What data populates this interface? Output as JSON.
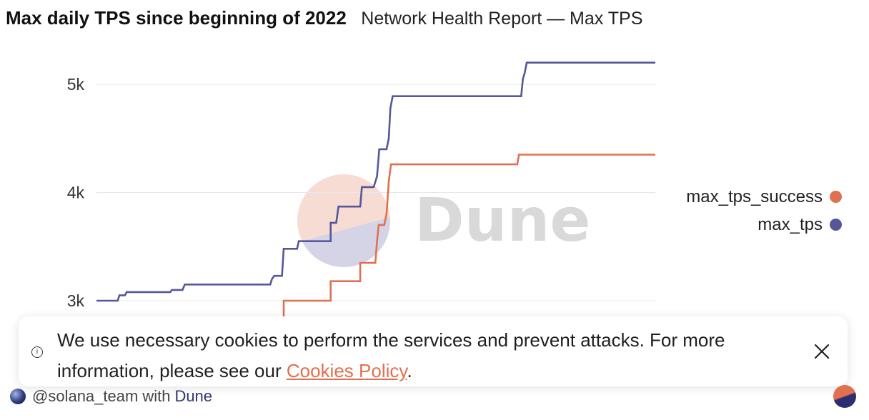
{
  "header": {
    "title": "Max daily TPS since beginning of 2022",
    "subtitle": "Network Health Report — Max TPS"
  },
  "watermark": {
    "text": "Dune"
  },
  "chart_data": {
    "type": "line",
    "title": "Max daily TPS since beginning of 2022",
    "xlabel": "",
    "ylabel": "",
    "x_axis_visible": false,
    "y_ticks": [
      {
        "value": 3000,
        "label": "3k"
      },
      {
        "value": 4000,
        "label": "4k"
      },
      {
        "value": 5000,
        "label": "5k"
      }
    ],
    "ylim": [
      2700,
      5400
    ],
    "xlim": [
      0,
      100
    ],
    "grid": true,
    "legend_position": "right",
    "series": [
      {
        "name": "max_tps_success",
        "color": "#e0704f",
        "points": [
          [
            33.5,
            2850
          ],
          [
            33.5,
            3000
          ],
          [
            41.9,
            3000
          ],
          [
            41.9,
            3180
          ],
          [
            47.2,
            3180
          ],
          [
            47.2,
            3350
          ],
          [
            49.9,
            3350
          ],
          [
            50.2,
            3550
          ],
          [
            50.5,
            3700
          ],
          [
            51.5,
            3700
          ],
          [
            51.9,
            3800
          ],
          [
            52.3,
            4100
          ],
          [
            52.7,
            4260
          ],
          [
            75.3,
            4260
          ],
          [
            75.6,
            4350
          ],
          [
            100.0,
            4350
          ]
        ]
      },
      {
        "name": "max_tps",
        "color": "#55579a",
        "points": [
          [
            0.0,
            3000
          ],
          [
            3.8,
            3000
          ],
          [
            4.1,
            3050
          ],
          [
            5.1,
            3050
          ],
          [
            5.4,
            3080
          ],
          [
            13.2,
            3080
          ],
          [
            13.5,
            3100
          ],
          [
            15.4,
            3100
          ],
          [
            15.8,
            3150
          ],
          [
            31.1,
            3150
          ],
          [
            31.4,
            3200
          ],
          [
            31.8,
            3230
          ],
          [
            33.2,
            3230
          ],
          [
            33.5,
            3480
          ],
          [
            35.9,
            3480
          ],
          [
            36.2,
            3550
          ],
          [
            41.9,
            3550
          ],
          [
            41.9,
            3720
          ],
          [
            42.9,
            3720
          ],
          [
            43.3,
            3870
          ],
          [
            47.2,
            3870
          ],
          [
            47.5,
            4050
          ],
          [
            49.6,
            4050
          ],
          [
            50.2,
            4150
          ],
          [
            50.6,
            4400
          ],
          [
            51.9,
            4400
          ],
          [
            52.3,
            4500
          ],
          [
            52.6,
            4780
          ],
          [
            53.0,
            4890
          ],
          [
            76.0,
            4890
          ],
          [
            76.3,
            5050
          ],
          [
            76.6,
            5100
          ],
          [
            77.0,
            5200
          ],
          [
            100.0,
            5200
          ]
        ]
      }
    ]
  },
  "cookie_banner": {
    "text": "We use necessary cookies to perform the services and prevent attacks. For more information, please see our",
    "link_text": "Cookies Policy",
    "suffix": ".",
    "info_icon": "i"
  },
  "footer": {
    "handle": "@solana_team",
    "with": "with",
    "brand": "Dune"
  }
}
